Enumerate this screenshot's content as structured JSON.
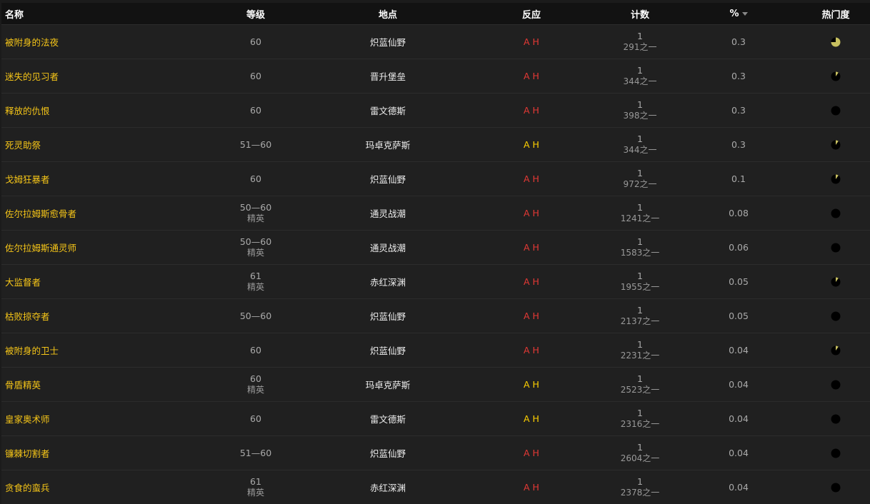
{
  "headers": {
    "name": "名称",
    "level": "等级",
    "location": "地点",
    "react": "反应",
    "count": "计数",
    "pct": "%",
    "popularity": "热门度"
  },
  "colors": {
    "name": "#f5c518",
    "hostile": "#e53935",
    "neutral": "#ffd100",
    "pie": "#c8c060"
  },
  "rows": [
    {
      "name": "被附身的法夜",
      "level": "60",
      "sub": "",
      "loc": "炽蓝仙野",
      "react": "A H",
      "react_color": "red",
      "count": "1",
      "of": "291之一",
      "pct": "0.3",
      "pop": 0.75
    },
    {
      "name": "迷失的见习者",
      "level": "60",
      "sub": "",
      "loc": "晋升堡垒",
      "react": "A H",
      "react_color": "red",
      "count": "1",
      "of": "344之一",
      "pct": "0.3",
      "pop": 0.1
    },
    {
      "name": "释放的仇恨",
      "level": "60",
      "sub": "",
      "loc": "雷文德斯",
      "react": "A H",
      "react_color": "red",
      "count": "1",
      "of": "398之一",
      "pct": "0.3",
      "pop": 0
    },
    {
      "name": "死灵助祭",
      "level": "51—60",
      "sub": "",
      "loc": "玛卓克萨斯",
      "react": "A H",
      "react_color": "yellow",
      "count": "1",
      "of": "344之一",
      "pct": "0.3",
      "pop": 0.1
    },
    {
      "name": "戈姆狂暴者",
      "level": "60",
      "sub": "",
      "loc": "炽蓝仙野",
      "react": "A H",
      "react_color": "red",
      "count": "1",
      "of": "972之一",
      "pct": "0.1",
      "pop": 0.1
    },
    {
      "name": "佐尔拉姆斯愈骨者",
      "level": "50—60",
      "sub": "精英",
      "loc": "通灵战潮",
      "react": "A H",
      "react_color": "red",
      "count": "1",
      "of": "1241之一",
      "pct": "0.08",
      "pop": 0
    },
    {
      "name": "佐尔拉姆斯通灵师",
      "level": "50—60",
      "sub": "精英",
      "loc": "通灵战潮",
      "react": "A H",
      "react_color": "red",
      "count": "1",
      "of": "1583之一",
      "pct": "0.06",
      "pop": 0
    },
    {
      "name": "大监督者",
      "level": "61",
      "sub": "精英",
      "loc": "赤红深渊",
      "react": "A H",
      "react_color": "red",
      "count": "1",
      "of": "1955之一",
      "pct": "0.05",
      "pop": 0.1
    },
    {
      "name": "枯败掠夺者",
      "level": "50—60",
      "sub": "",
      "loc": "炽蓝仙野",
      "react": "A H",
      "react_color": "red",
      "count": "1",
      "of": "2137之一",
      "pct": "0.05",
      "pop": 0
    },
    {
      "name": "被附身的卫士",
      "level": "60",
      "sub": "",
      "loc": "炽蓝仙野",
      "react": "A H",
      "react_color": "red",
      "count": "1",
      "of": "2231之一",
      "pct": "0.04",
      "pop": 0.1
    },
    {
      "name": "骨盾精英",
      "level": "60",
      "sub": "精英",
      "loc": "玛卓克萨斯",
      "react": "A H",
      "react_color": "yellow",
      "count": "1",
      "of": "2523之一",
      "pct": "0.04",
      "pop": 0
    },
    {
      "name": "皇家奥术师",
      "level": "60",
      "sub": "",
      "loc": "雷文德斯",
      "react": "A H",
      "react_color": "yellow",
      "count": "1",
      "of": "2316之一",
      "pct": "0.04",
      "pop": 0
    },
    {
      "name": "镰棘切割者",
      "level": "51—60",
      "sub": "",
      "loc": "炽蓝仙野",
      "react": "A H",
      "react_color": "red",
      "count": "1",
      "of": "2604之一",
      "pct": "0.04",
      "pop": 0
    },
    {
      "name": "贪食的蛮兵",
      "level": "61",
      "sub": "精英",
      "loc": "赤红深渊",
      "react": "A H",
      "react_color": "red",
      "count": "1",
      "of": "2378之一",
      "pct": "0.04",
      "pop": 0
    }
  ]
}
